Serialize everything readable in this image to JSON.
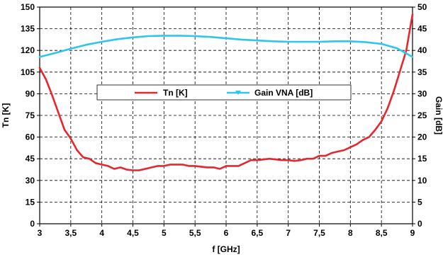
{
  "chart_data": {
    "type": "line",
    "xlabel": "f [GHz]",
    "ylabel_left": "Tn [K]",
    "ylabel_right": "Gain [dB]",
    "xlim": [
      3,
      9
    ],
    "ylim_left": [
      0,
      150
    ],
    "ylim_right": [
      0,
      50
    ],
    "x_ticks": [
      "3",
      "3,5",
      "4",
      "4,5",
      "5",
      "5,5",
      "6",
      "6,5",
      "7",
      "7,5",
      "8",
      "8,5",
      "9"
    ],
    "y_ticks_left": [
      "0",
      "15",
      "30",
      "45",
      "60",
      "75",
      "90",
      "105",
      "120",
      "135",
      "150"
    ],
    "y_ticks_right": [
      "0",
      "5",
      "10",
      "15",
      "20",
      "25",
      "30",
      "35",
      "40",
      "45",
      "50"
    ],
    "grid": true,
    "legend_position": "center",
    "series": [
      {
        "name": "Tn [K]",
        "axis": "left",
        "color": "#e8262b",
        "x": [
          3.0,
          3.1,
          3.2,
          3.3,
          3.4,
          3.5,
          3.6,
          3.7,
          3.8,
          3.9,
          4.0,
          4.1,
          4.2,
          4.3,
          4.4,
          4.5,
          4.6,
          4.7,
          4.8,
          4.9,
          5.0,
          5.1,
          5.2,
          5.3,
          5.4,
          5.5,
          5.6,
          5.7,
          5.8,
          5.9,
          6.0,
          6.1,
          6.2,
          6.3,
          6.4,
          6.5,
          6.6,
          6.7,
          6.8,
          6.9,
          7.0,
          7.1,
          7.2,
          7.3,
          7.4,
          7.5,
          7.6,
          7.7,
          7.8,
          7.9,
          8.0,
          8.1,
          8.2,
          8.3,
          8.4,
          8.5,
          8.6,
          8.7,
          8.8,
          8.9,
          9.0
        ],
        "values": [
          108,
          100,
          89,
          77,
          65,
          59,
          51,
          46,
          45,
          42,
          41,
          40,
          38,
          39,
          37.5,
          37,
          37,
          38,
          39,
          40,
          40,
          41,
          41,
          41,
          40,
          40,
          39.5,
          39,
          39,
          38,
          40,
          40,
          40,
          42,
          44,
          44,
          44.5,
          45,
          44.5,
          44,
          44,
          43.5,
          44,
          45,
          45,
          47,
          47,
          49,
          50,
          51,
          53,
          55,
          58,
          60,
          65,
          71,
          80,
          92,
          106,
          120,
          145
        ]
      },
      {
        "name": "Gain VNA [dB]",
        "axis": "right",
        "color": "#2ec5ee",
        "x": [
          3.0,
          3.25,
          3.5,
          3.75,
          4.0,
          4.25,
          4.5,
          4.75,
          5.0,
          5.25,
          5.5,
          5.75,
          6.0,
          6.25,
          6.5,
          6.75,
          7.0,
          7.25,
          7.5,
          7.75,
          8.0,
          8.25,
          8.5,
          8.75,
          9.0
        ],
        "values": [
          38.5,
          39.4,
          40.4,
          41.3,
          42.0,
          42.6,
          43.0,
          43.3,
          43.4,
          43.4,
          43.3,
          43.1,
          42.8,
          42.5,
          42.3,
          42.1,
          42.0,
          42.0,
          42.0,
          42.1,
          42.1,
          41.9,
          41.5,
          40.5,
          38.5
        ]
      }
    ]
  }
}
